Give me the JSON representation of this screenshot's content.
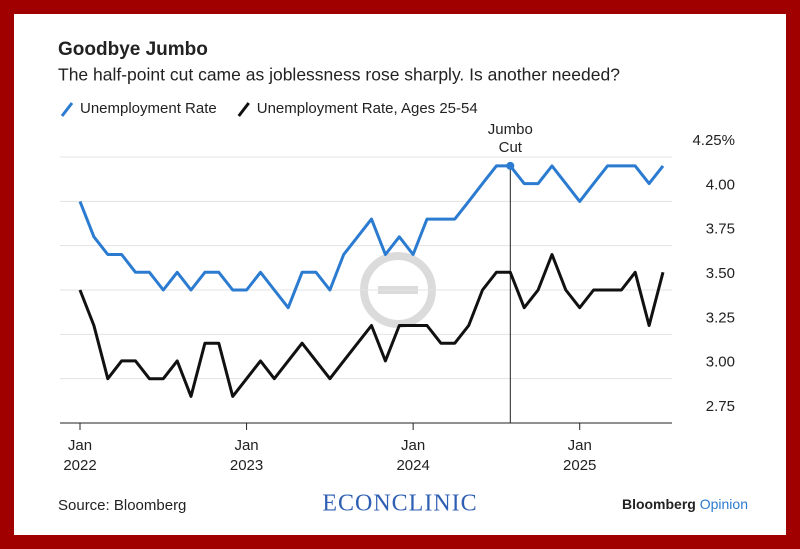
{
  "chart_data": {
    "type": "line",
    "title": "Goodbye Jumbo",
    "subtitle": "The half-point cut came as joblessness rose sharply. Is another needed?",
    "categories": [
      "Jan 2022",
      null,
      null,
      null,
      null,
      null,
      null,
      null,
      null,
      null,
      null,
      null,
      "Jan 2023",
      null,
      null,
      null,
      null,
      null,
      null,
      null,
      null,
      null,
      null,
      null,
      "Jan 2024",
      null,
      null,
      null,
      null,
      null,
      null,
      null,
      null,
      null,
      null,
      null,
      "Jan 2025",
      null,
      null,
      null,
      null,
      null,
      null
    ],
    "series": [
      {
        "name": "Unemployment Rate",
        "color": "#2b7bd0",
        "values": [
          4.0,
          3.8,
          3.7,
          3.7,
          3.6,
          3.6,
          3.5,
          3.6,
          3.5,
          3.6,
          3.6,
          3.5,
          3.5,
          3.6,
          3.5,
          3.4,
          3.6,
          3.6,
          3.5,
          3.7,
          3.8,
          3.9,
          3.7,
          3.8,
          3.7,
          3.9,
          3.9,
          3.9,
          4.0,
          4.1,
          4.2,
          4.2,
          4.1,
          4.1,
          4.2,
          4.1,
          4.0,
          4.1,
          4.2,
          4.2,
          4.2,
          4.1,
          4.2
        ]
      },
      {
        "name": "Unemployment Rate, Ages 25-54",
        "color": "#111111",
        "values": [
          3.5,
          3.3,
          3.0,
          3.1,
          3.1,
          3.0,
          3.0,
          3.1,
          2.9,
          3.2,
          3.2,
          2.9,
          3.0,
          3.1,
          3.0,
          3.1,
          3.2,
          3.1,
          3.0,
          3.1,
          3.2,
          3.3,
          3.1,
          3.3,
          3.3,
          3.3,
          3.2,
          3.2,
          3.3,
          3.5,
          3.6,
          3.6,
          3.4,
          3.5,
          3.7,
          3.5,
          3.4,
          3.5,
          3.5,
          3.5,
          3.6,
          3.3,
          3.6
        ]
      }
    ],
    "annotation": "Jumbo Cut",
    "ylim": [
      2.75,
      4.3
    ],
    "yticks": [
      {
        "value": 4.25,
        "label": "4.25%"
      },
      {
        "value": 4,
        "label": "4.00"
      },
      3.75,
      {
        "value": 3.5,
        "label": "3.50"
      },
      3.25,
      {
        "value": 3,
        "label": "3.00"
      },
      2.75
    ],
    "grid": true,
    "source": "Source: Bloomberg",
    "watermark": "ECONCLINIC",
    "brand": "Bloomberg",
    "brand_suffix": "Opinion"
  }
}
